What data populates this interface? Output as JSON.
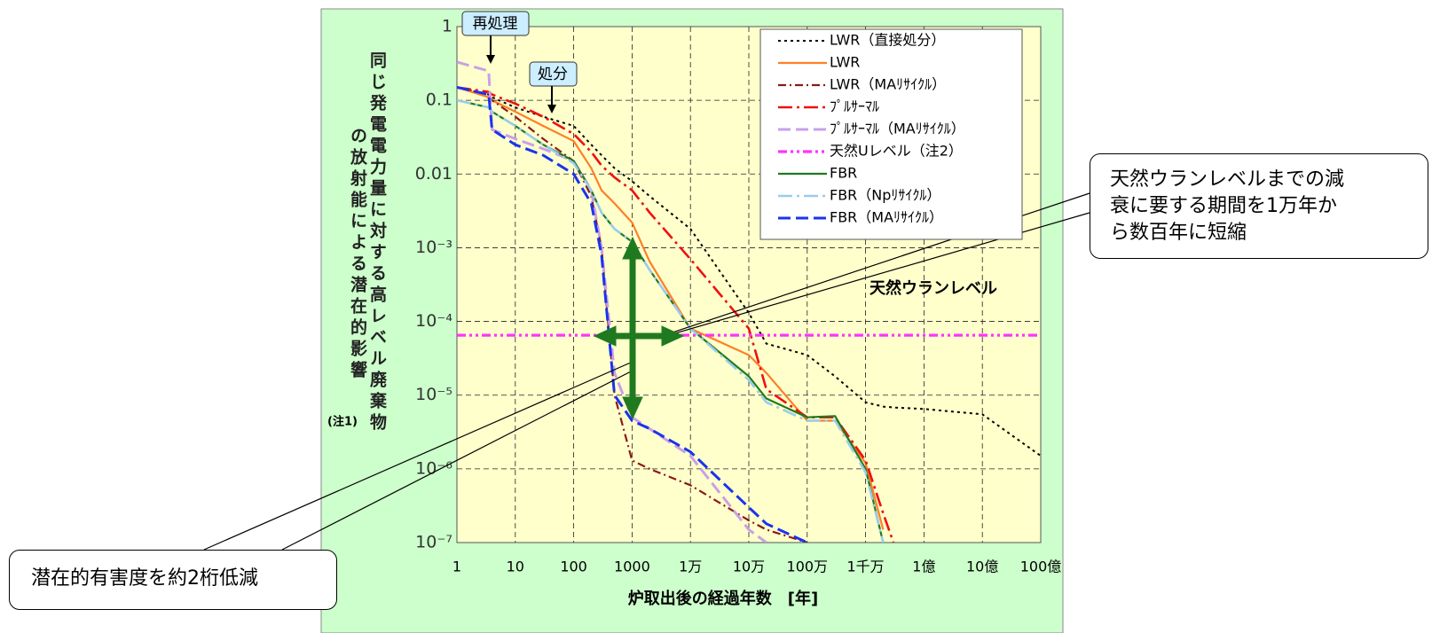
{
  "chart_data": {
    "type": "line",
    "x_label": "炉取出後の経過年数　[年]",
    "y_label": [
      "同じ発電電力量に対する高レベル廃棄物",
      "の放射能による潜在的影響"
    ],
    "y_label_note": "(注1)",
    "log_x": true,
    "log_y": true,
    "grid": true,
    "xlim": [
      1,
      10000000000
    ],
    "ylim": [
      1e-07,
      1
    ],
    "xticks": [
      1,
      10,
      100,
      1000,
      {
        "value": 10000,
        "label": "1万"
      },
      {
        "value": 100000,
        "label": "10万"
      },
      {
        "value": 1000000,
        "label": "100万"
      },
      {
        "value": 10000000,
        "label": "1千万"
      },
      {
        "value": 100000000,
        "label": "1億"
      },
      {
        "value": 1000000000,
        "label": "10億"
      },
      {
        "value": 10000000000,
        "label": "100億"
      }
    ],
    "yticks": [
      {
        "value": 1e-07,
        "label": "10⁻⁷"
      },
      {
        "value": 1e-06,
        "label": "10⁻⁶"
      },
      {
        "value": 1e-05,
        "label": "10⁻⁵"
      },
      {
        "value": 0.0001,
        "label": "10⁻⁴"
      },
      {
        "value": 0.001,
        "label": "10⁻³"
      },
      0.01,
      0.1,
      1
    ],
    "x": [
      1,
      3.5,
      4,
      10,
      30,
      100,
      200,
      300,
      500,
      1000,
      2000,
      10000,
      100000,
      200000,
      1000000,
      3000000,
      10000000,
      20000000,
      30000000,
      100000000,
      1000000000,
      10000000000
    ],
    "series": [
      {
        "name": "LWR（直接処分）",
        "color": "#000000",
        "dash": "dotted",
        "values": [
          0.15,
          0.12,
          0.11,
          0.08,
          0.06,
          0.045,
          0.025,
          0.018,
          0.012,
          0.008,
          0.005,
          0.0018,
          0.00013,
          5e-05,
          3.5e-05,
          1.8e-05,
          8e-06,
          7e-06,
          6.8e-06,
          6.5e-06,
          5.5e-06,
          1.5e-06
        ]
      },
      {
        "name": "LWR",
        "color": "#ff7f27",
        "dash": "solid",
        "values": [
          0.15,
          0.11,
          0.1,
          0.07,
          0.045,
          0.028,
          0.012,
          0.006,
          0.004,
          0.0022,
          0.00065,
          8e-05,
          3.5e-05,
          2e-05,
          4.5e-06,
          4.5e-06,
          1.2e-06,
          1.5e-07,
          null,
          null,
          null,
          null
        ]
      },
      {
        "name": "LWR（MAﾘｻｲｸﾙ）",
        "color": "#8b1a1a",
        "dash": "dash-dot",
        "values": [
          0.15,
          0.12,
          0.1,
          0.06,
          0.03,
          0.015,
          0.005,
          0.001,
          1e-05,
          1.3e-06,
          1e-06,
          6e-07,
          2e-07,
          1.5e-07,
          1e-07,
          null,
          null,
          null,
          null,
          null,
          null,
          null
        ]
      },
      {
        "name": "ﾌﾟﾙｻｰﾏﾙ",
        "color": "#ee1111",
        "dash": "long-dash-dot",
        "values": [
          0.15,
          0.13,
          0.12,
          0.09,
          0.06,
          0.035,
          0.02,
          0.013,
          0.009,
          0.006,
          0.003,
          0.0007,
          8e-05,
          1.2e-05,
          5e-06,
          5e-06,
          1.3e-06,
          2.5e-07,
          1e-07,
          null,
          null,
          null
        ]
      },
      {
        "name": "ﾌﾟﾙｻｰﾏﾙ（MAﾘｻｲｸﾙ）",
        "color": "#c9a0e8",
        "dash": "dashed",
        "values": [
          0.33,
          0.25,
          0.04,
          0.03,
          0.022,
          0.015,
          0.006,
          0.001,
          2e-05,
          5e-06,
          3.5e-06,
          1.5e-06,
          1.5e-07,
          1e-07,
          null,
          null,
          null,
          null,
          null,
          null,
          null,
          null
        ]
      },
      {
        "name": "天然Uレベル（注2）",
        "color": "#ff33ff",
        "dash": "dash-dot-dot",
        "values": [
          6.5e-05,
          6.5e-05,
          6.5e-05,
          6.5e-05,
          6.5e-05,
          6.5e-05,
          6.5e-05,
          6.5e-05,
          6.5e-05,
          6.5e-05,
          6.5e-05,
          6.5e-05,
          6.5e-05,
          6.5e-05,
          6.5e-05,
          6.5e-05,
          6.5e-05,
          6.5e-05,
          6.5e-05,
          6.5e-05,
          6.5e-05,
          6.5e-05
        ]
      },
      {
        "name": "FBR",
        "color": "#1f7a1f",
        "dash": "solid",
        "values": [
          0.1,
          0.08,
          0.07,
          0.045,
          0.025,
          0.015,
          0.006,
          0.003,
          0.0018,
          0.0012,
          0.0005,
          8e-05,
          1.8e-05,
          9e-06,
          5e-06,
          5.2e-06,
          1e-06,
          1e-07,
          null,
          null,
          null,
          null
        ]
      },
      {
        "name": "FBR（Npﾘｻｲｸﾙ）",
        "color": "#99ccee",
        "dash": "long-dash-dot",
        "values": [
          0.1,
          0.08,
          0.07,
          0.045,
          0.025,
          0.014,
          0.006,
          0.003,
          0.0018,
          0.0012,
          0.0005,
          8e-05,
          1.6e-05,
          8e-06,
          4.5e-06,
          4.5e-06,
          9e-07,
          1e-07,
          null,
          null,
          null,
          null
        ]
      },
      {
        "name": "FBR（MAﾘｻｲｸﾙ）",
        "color": "#1a33ee",
        "dash": "dashed",
        "values": [
          0.15,
          0.12,
          0.04,
          0.025,
          0.018,
          0.01,
          0.004,
          0.0008,
          1e-05,
          4.5e-06,
          3.5e-06,
          1.7e-06,
          3e-07,
          1.8e-07,
          1e-07,
          null,
          null,
          null,
          null,
          null,
          null,
          null
        ]
      }
    ],
    "annotations": [
      "再処理",
      "処分",
      "天然ウランレベル"
    ],
    "callouts": [
      "天然ウランレベルまでの減衰に要する期間を1万年から数百年に短縮",
      "潜在的有害度を約2桁低減"
    ]
  }
}
